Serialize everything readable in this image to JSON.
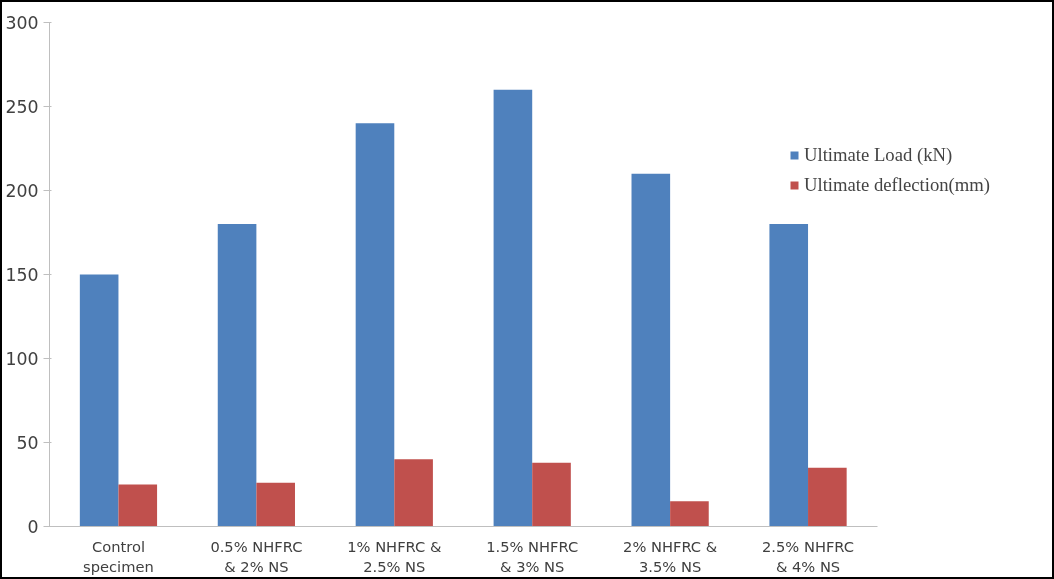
{
  "chart_data": {
    "type": "bar",
    "categories": [
      "Control\nspecimen",
      "0.5% NHFRC\n& 2% NS",
      "1% NHFRC &\n2.5% NS",
      "1.5% NHFRC\n& 3% NS",
      "2% NHFRC &\n3.5% NS",
      "2.5% NHFRC\n& 4% NS"
    ],
    "series": [
      {
        "name": "Ultimate Load (kN)",
        "color": "#4f81bd",
        "values": [
          150,
          180,
          240,
          260,
          210,
          180
        ]
      },
      {
        "name": "Ultimate deflection(mm)",
        "color": "#c0504d",
        "values": [
          25,
          26,
          40,
          38,
          15,
          35
        ]
      }
    ],
    "ylim": [
      0,
      300
    ],
    "yticks": [
      0,
      50,
      100,
      150,
      200,
      250,
      300
    ],
    "grid": false,
    "legend": "right"
  }
}
